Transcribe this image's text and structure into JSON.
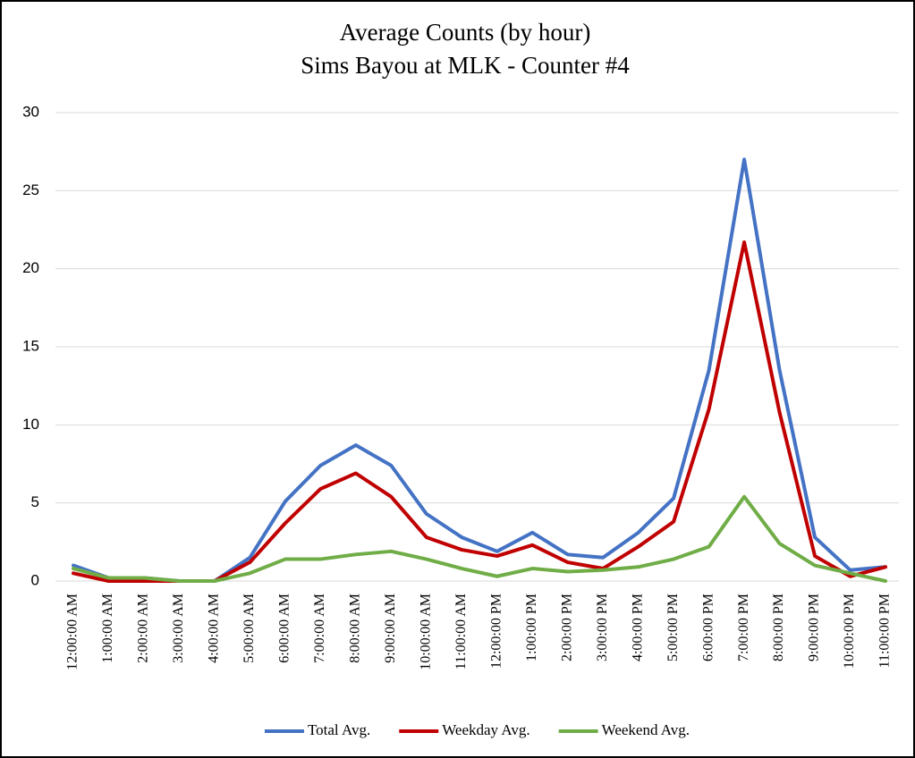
{
  "chart_data": {
    "type": "line",
    "title": "Average Counts (by hour)",
    "subtitle": "Sims Bayou at MLK - Counter #4",
    "categories": [
      "12:00:00 AM",
      "1:00:00 AM",
      "2:00:00 AM",
      "3:00:00 AM",
      "4:00:00 AM",
      "5:00:00 AM",
      "6:00:00 AM",
      "7:00:00 AM",
      "8:00:00 AM",
      "9:00:00 AM",
      "10:00:00 AM",
      "11:00:00 AM",
      "12:00:00 PM",
      "1:00:00 PM",
      "2:00:00 PM",
      "3:00:00 PM",
      "4:00:00 PM",
      "5:00:00 PM",
      "6:00:00 PM",
      "7:00:00 PM",
      "8:00:00 PM",
      "9:00:00 PM",
      "10:00:00 PM",
      "11:00:00 PM"
    ],
    "series": [
      {
        "name": "Total Avg.",
        "color": "#4472c4",
        "values": [
          1.0,
          0.2,
          0.2,
          0,
          0,
          1.5,
          5.1,
          7.4,
          8.7,
          7.4,
          4.3,
          2.8,
          1.9,
          3.1,
          1.7,
          1.5,
          3.1,
          5.3,
          13.5,
          27.0,
          13.5,
          2.8,
          0.7,
          0.9
        ]
      },
      {
        "name": "Weekday Avg.",
        "color": "#c00000",
        "values": [
          0.5,
          0,
          0,
          0,
          0,
          1.2,
          3.7,
          5.9,
          6.9,
          5.4,
          2.8,
          2.0,
          1.6,
          2.3,
          1.2,
          0.8,
          2.2,
          3.8,
          11.0,
          21.7,
          10.8,
          1.6,
          0.3,
          0.9
        ]
      },
      {
        "name": "Weekend Avg.",
        "color": "#70ad47",
        "values": [
          0.8,
          0.2,
          0.2,
          0,
          0,
          0.5,
          1.4,
          1.4,
          1.7,
          1.9,
          1.4,
          0.8,
          0.3,
          0.8,
          0.6,
          0.7,
          0.9,
          1.4,
          2.2,
          5.4,
          2.4,
          1.0,
          0.5,
          0
        ]
      }
    ],
    "ylim": [
      0,
      30
    ],
    "yticks": [
      0,
      5,
      10,
      15,
      20,
      25,
      30
    ],
    "grid": true,
    "legend": "bottom"
  }
}
